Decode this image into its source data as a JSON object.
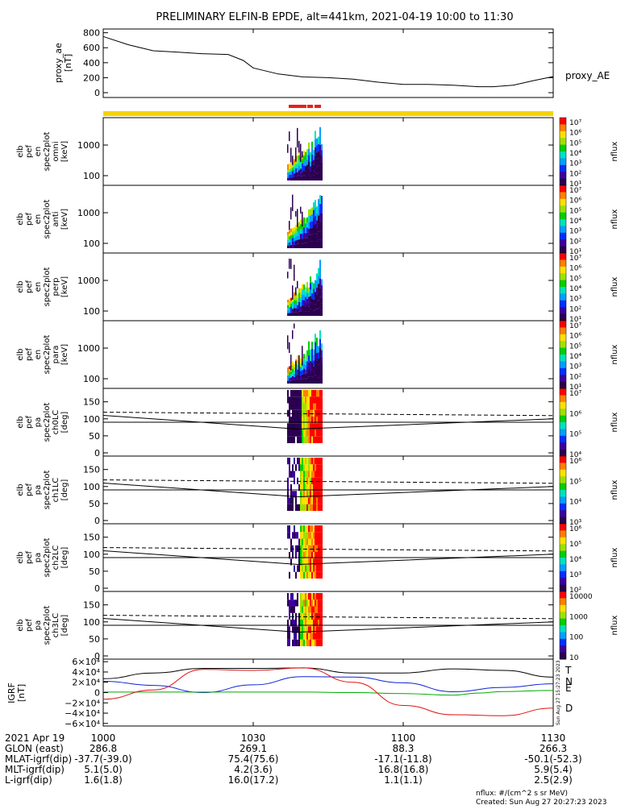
{
  "title": "PRELIMINARY ELFIN-B EPDE, alt=441km, 2021-04-19 10:00 to 11:30",
  "colors": {
    "red_bar": "#e8201a",
    "yellow_bar": "#f5d400",
    "n_line": "#0a22d6",
    "e_line": "#00aa00",
    "d_line": "#e01010"
  },
  "chart_data": [
    {
      "type": "line",
      "panel": "proxy_ae",
      "ylabel": [
        "proxy_ae",
        "[nT]"
      ],
      "legend": "proxy_AE",
      "ylim": [
        0,
        850
      ],
      "yticks": [
        "800",
        "600",
        "400",
        "200",
        "0"
      ],
      "x_minutes": [
        0,
        5,
        10,
        15,
        20,
        25,
        28,
        30,
        35,
        40,
        45,
        50,
        55,
        60,
        65,
        70,
        75,
        78,
        82,
        86,
        90
      ],
      "values": [
        750,
        640,
        560,
        540,
        520,
        510,
        430,
        330,
        250,
        210,
        200,
        180,
        140,
        110,
        110,
        100,
        80,
        80,
        100,
        160,
        215
      ]
    },
    {
      "type": "heatmap",
      "panels": [
        {
          "ylabel": [
            "elb",
            "pef",
            "en",
            "spec2plot",
            "omni",
            "[keV]"
          ],
          "yticks": [
            "1000",
            "100"
          ],
          "cbar": [
            "10⁷",
            "10⁶",
            "10⁵",
            "10⁴",
            "10³",
            "10²",
            "10¹"
          ],
          "cbar_label": "nflux"
        },
        {
          "ylabel": [
            "elb",
            "pef",
            "en",
            "spec2plot",
            "anti",
            "[keV]"
          ],
          "yticks": [
            "1000",
            "100"
          ],
          "cbar": [
            "10⁷",
            "10⁶",
            "10⁵",
            "10⁴",
            "10³",
            "10²",
            "10¹"
          ],
          "cbar_label": "nflux"
        },
        {
          "ylabel": [
            "elb",
            "pef",
            "en",
            "spec2plot",
            "perp",
            "[keV]"
          ],
          "yticks": [
            "1000",
            "100"
          ],
          "cbar": [
            "10⁷",
            "10⁶",
            "10⁵",
            "10⁴",
            "10³",
            "10²",
            "10¹"
          ],
          "cbar_label": "nflux"
        },
        {
          "ylabel": [
            "elb",
            "pef",
            "en",
            "spec2plot",
            "para",
            "[keV]"
          ],
          "yticks": [
            "1000",
            "100"
          ],
          "cbar": [
            "10⁷",
            "10⁶",
            "10⁵",
            "10⁴",
            "10³",
            "10²",
            "10¹"
          ],
          "cbar_label": "nflux"
        },
        {
          "ylabel": [
            "elb",
            "pef",
            "pa",
            "spec2plot",
            "ch0LC",
            "[deg]"
          ],
          "yticks": [
            "150",
            "100",
            "50",
            "0"
          ],
          "cbar": [
            "10⁷",
            "10⁶",
            "10⁵",
            "10⁴"
          ],
          "cbar_label": "nflux"
        },
        {
          "ylabel": [
            "elb",
            "pef",
            "pa",
            "spec2plot",
            "ch1LC",
            "[deg]"
          ],
          "yticks": [
            "150",
            "100",
            "50",
            "0"
          ],
          "cbar": [
            "10⁶",
            "10⁵",
            "10⁴",
            "10³"
          ],
          "cbar_label": "nflux"
        },
        {
          "ylabel": [
            "elb",
            "pef",
            "pa",
            "spec2plot",
            "ch2LC",
            "[deg]"
          ],
          "yticks": [
            "150",
            "100",
            "50",
            "0"
          ],
          "cbar": [
            "10⁶",
            "10⁵",
            "10⁴",
            "10³",
            "10²"
          ],
          "cbar_label": "nflux"
        },
        {
          "ylabel": [
            "elb",
            "pef",
            "pa",
            "spec2plot",
            "ch3LC",
            "[deg]"
          ],
          "yticks": [
            "150",
            "100",
            "50",
            "0"
          ],
          "cbar": [
            "10000",
            "1000",
            "100",
            "10"
          ],
          "cbar_label": "nflux"
        }
      ]
    },
    {
      "type": "line",
      "panel": "igrf",
      "ylabel": [
        "IGRF",
        "[nT]"
      ],
      "ylim": [
        -65000,
        65000
      ],
      "yticks": [
        "6×10⁴",
        "4×10⁴",
        "2×10⁴",
        "0",
        "−2×10⁴",
        "−4×10⁴",
        "−6×10⁴"
      ],
      "series": [
        {
          "name": "T",
          "x_minutes": [
            0,
            10,
            20,
            30,
            40,
            50,
            60,
            70,
            80,
            90
          ],
          "values": [
            27000,
            38000,
            47000,
            47000,
            48000,
            38000,
            38000,
            46000,
            43000,
            30000
          ]
        },
        {
          "name": "N",
          "x_minutes": [
            0,
            10,
            20,
            30,
            40,
            50,
            60,
            70,
            80,
            90
          ],
          "values": [
            22000,
            14000,
            0,
            15000,
            31000,
            30000,
            19000,
            1500,
            10000,
            17000
          ]
        },
        {
          "name": "E",
          "x_minutes": [
            0,
            10,
            20,
            30,
            40,
            50,
            60,
            70,
            75,
            80,
            90
          ],
          "values": [
            1000,
            1000,
            1000,
            1000,
            1000,
            0,
            -2000,
            -5000,
            -1000,
            2000,
            4000
          ]
        },
        {
          "name": "D",
          "x_minutes": [
            0,
            10,
            20,
            30,
            40,
            50,
            60,
            70,
            80,
            90
          ],
          "values": [
            -13000,
            5000,
            45000,
            43000,
            48000,
            20000,
            -25000,
            -43000,
            -45000,
            -30000
          ]
        }
      ]
    }
  ],
  "xaxis": {
    "row_labels": [
      "2021 Apr 19",
      "GLON (east)",
      "MLAT-igrf(dip)",
      "MLT-igrf(dip)",
      "L-igrf(dip)"
    ],
    "columns": [
      {
        "time": "1000",
        "glon": "286.8",
        "mlat": "-37.7(-39.0)",
        "mlt": "5.1(5.0)",
        "l": "1.6(1.8)"
      },
      {
        "time": "1030",
        "glon": "269.1",
        "mlat": "75.4(75.6)",
        "mlt": "4.2(3.6)",
        "l": "16.0(17.2)"
      },
      {
        "time": "1100",
        "glon": "88.3",
        "mlat": "-17.1(-11.8)",
        "mlt": "16.8(16.8)",
        "l": "1.1(1.1)"
      },
      {
        "time": "1130",
        "glon": "266.3",
        "mlat": "-50.1(-52.3)",
        "mlt": "5.9(5.4)",
        "l": "2.5(2.9)"
      }
    ]
  },
  "footer": {
    "units": "nflux: #/(cm^2 s sr MeV)",
    "created": "Created: Sun Aug 27 20:27:23 2023",
    "side_stamp": "Sun Aug 27 15:27:23 2023"
  }
}
